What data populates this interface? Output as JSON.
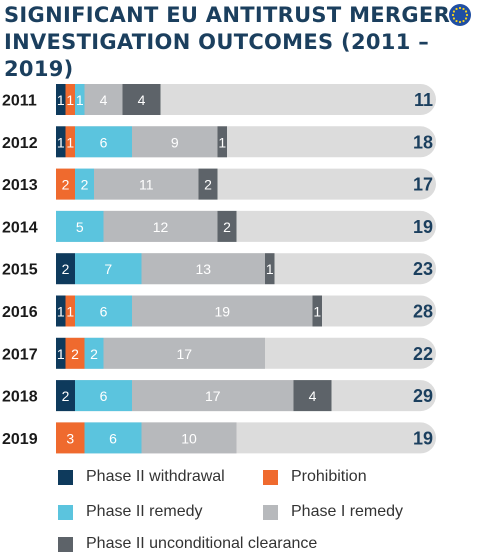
{
  "title_line1": "SIGNIFICANT EU ANTITRUST MERGER",
  "title_line2": "INVESTIGATION OUTCOMES (2011 – 2019)",
  "colors": {
    "phase2_withdrawal": "#0e3a5c",
    "prohibition": "#ef6a2e",
    "phase2_remedy": "#5bc4de",
    "phase1_remedy": "#b7b9bc",
    "phase2_unconditional": "#5d6369",
    "track": "#dcdcdc",
    "title": "#1b3f5e",
    "eu_blue": "#1f4fa3",
    "eu_star": "#f4d21f"
  },
  "chart_data": {
    "type": "bar",
    "orientation": "horizontal",
    "stacked": true,
    "title": "SIGNIFICANT EU ANTITRUST MERGER INVESTIGATION OUTCOMES (2011 – 2019)",
    "categories": [
      "2011",
      "2012",
      "2013",
      "2014",
      "2015",
      "2016",
      "2017",
      "2018",
      "2019"
    ],
    "series": [
      {
        "name": "Phase II withdrawal",
        "key": "phase2_withdrawal",
        "values": [
          1,
          1,
          0,
          0,
          2,
          1,
          1,
          2,
          0
        ]
      },
      {
        "name": "Prohibition",
        "key": "prohibition",
        "values": [
          1,
          1,
          2,
          0,
          0,
          1,
          2,
          0,
          3
        ]
      },
      {
        "name": "Phase II remedy",
        "key": "phase2_remedy",
        "values": [
          1,
          6,
          2,
          5,
          7,
          6,
          2,
          6,
          6
        ]
      },
      {
        "name": "Phase I remedy",
        "key": "phase1_remedy",
        "values": [
          4,
          9,
          11,
          12,
          13,
          19,
          17,
          17,
          10
        ]
      },
      {
        "name": "Phase II unconditional clearance",
        "key": "phase2_unconditional",
        "values": [
          4,
          1,
          2,
          2,
          1,
          1,
          0,
          4,
          0
        ]
      }
    ],
    "totals": [
      11,
      18,
      17,
      19,
      23,
      28,
      22,
      29,
      19
    ],
    "xlim": [
      0,
      40
    ],
    "grid": false,
    "legend_position": "bottom"
  }
}
